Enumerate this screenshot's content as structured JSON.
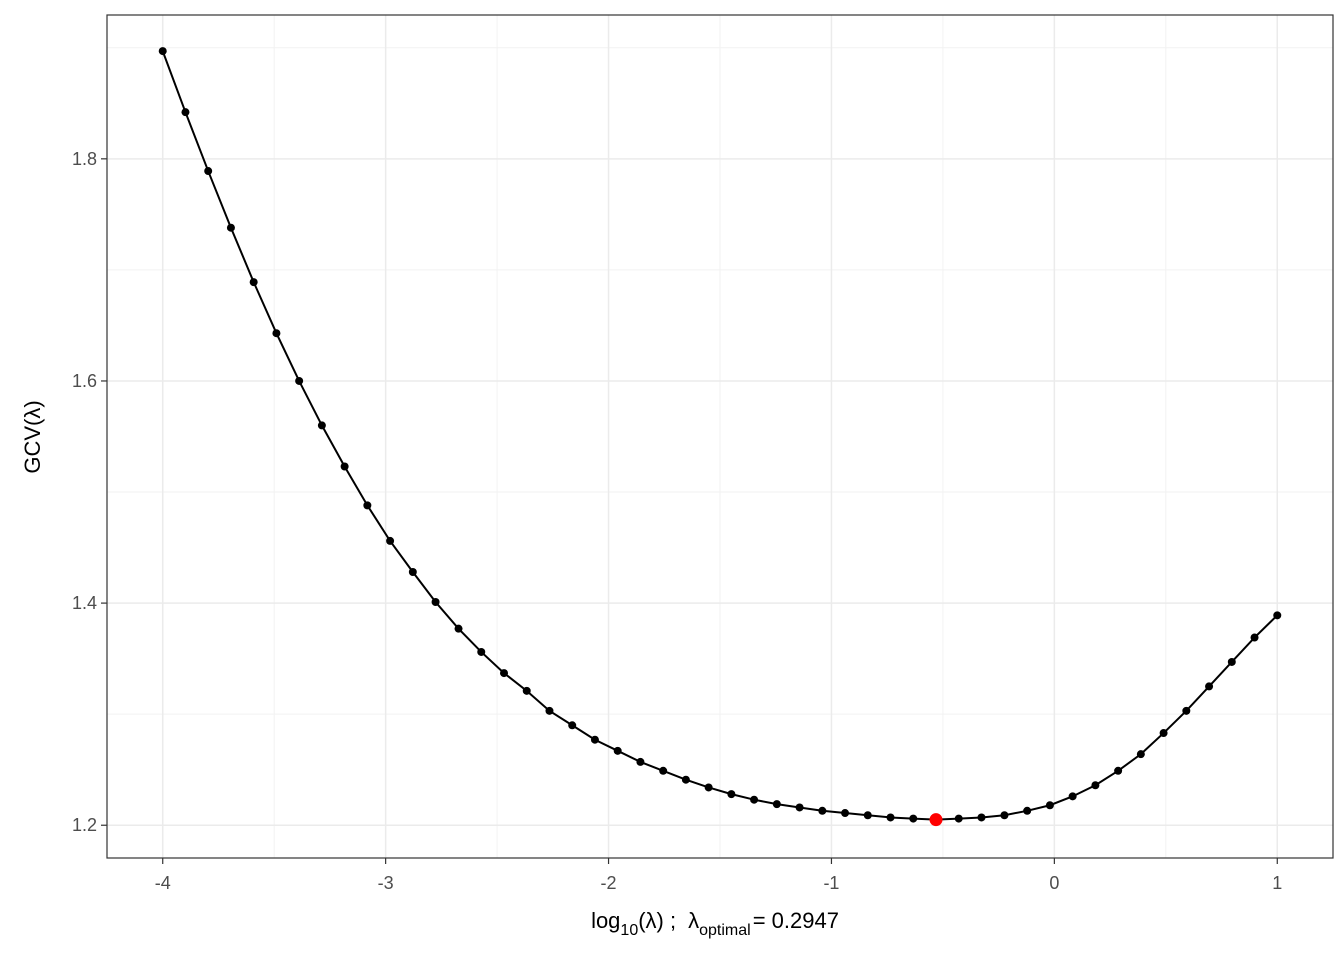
{
  "chart_data": {
    "type": "line",
    "x_label": [
      "log",
      "10",
      "(λ) ;",
      "λ",
      "optimal",
      "= 0.2947"
    ],
    "y_label": "GCV(λ)",
    "x": [
      -4,
      -3.898,
      -3.796,
      -3.694,
      -3.592,
      -3.49,
      -3.388,
      -3.286,
      -3.184,
      -3.082,
      -2.98,
      -2.878,
      -2.776,
      -2.673,
      -2.571,
      -2.469,
      -2.367,
      -2.265,
      -2.163,
      -2.061,
      -1.959,
      -1.857,
      -1.755,
      -1.653,
      -1.551,
      -1.449,
      -1.347,
      -1.245,
      -1.143,
      -1.041,
      -0.939,
      -0.837,
      -0.735,
      -0.633,
      -0.531,
      -0.429,
      -0.327,
      -0.224,
      -0.122,
      -0.02,
      0.082,
      0.184,
      0.286,
      0.388,
      0.49,
      0.592,
      0.694,
      0.796,
      0.898,
      1
    ],
    "series": [
      {
        "color": "#000000",
        "values": [
          1.897,
          1.842,
          1.789,
          1.738,
          1.689,
          1.643,
          1.6,
          1.56,
          1.523,
          1.488,
          1.456,
          1.428,
          1.401,
          1.377,
          1.356,
          1.337,
          1.321,
          1.303,
          1.29,
          1.277,
          1.267,
          1.257,
          1.249,
          1.241,
          1.234,
          1.228,
          1.223,
          1.219,
          1.216,
          1.213,
          1.211,
          1.209,
          1.207,
          1.206,
          1.205,
          1.206,
          1.207,
          1.209,
          1.213,
          1.218,
          1.226,
          1.236,
          1.249,
          1.264,
          1.283,
          1.303,
          1.325,
          1.347,
          1.369,
          1.389
        ]
      }
    ],
    "highlight": {
      "x": -0.531,
      "y": 1.205,
      "color": "#ff0000"
    },
    "xlim": [
      -4.25,
      1.25
    ],
    "ylim": [
      1.1705,
      1.9295
    ],
    "xticks": [
      -4,
      -3,
      -2,
      -1,
      0,
      1
    ],
    "yticks": [
      1.2,
      1.4,
      1.6,
      1.8
    ],
    "minor_xticks": [
      -3.5,
      -2.5,
      -1.5,
      -0.5,
      0.5
    ],
    "minor_yticks": [
      1.3,
      1.5,
      1.7,
      1.9
    ],
    "grid": true
  }
}
